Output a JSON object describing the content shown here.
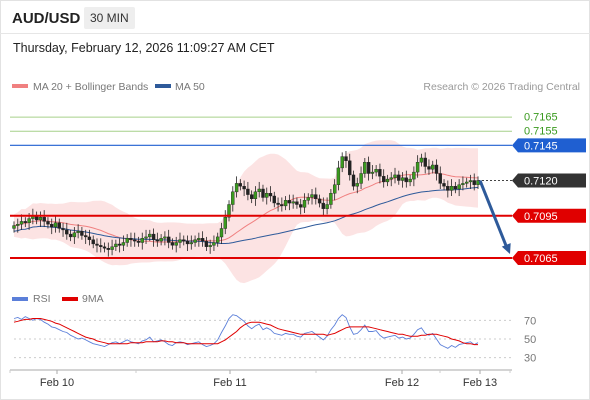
{
  "header": {
    "symbol": "AUD/USD",
    "timeframe": "30 MIN"
  },
  "datetime": "Thursday, February 12, 2026 11:09:27 AM CET",
  "legend": {
    "ma20_label": "MA 20 + Bollinger Bands",
    "ma50_label": "MA 50",
    "ma20_color": "#f08080",
    "ma50_color": "#2e5a9a",
    "credit": "Research © 2026 Trading Central"
  },
  "rsi_legend": {
    "rsi_label": "RSI",
    "ma9_label": "9MA",
    "rsi_color": "#5b7fd9",
    "ma9_color": "#e00000"
  },
  "chart_data": [
    {
      "type": "candlestick",
      "title": "",
      "y_range": [
        0.7048,
        0.718
      ],
      "x_ticks": [
        "Feb 10",
        "Feb 11",
        "Feb 12",
        "Feb 13"
      ],
      "current_price": 0.712,
      "levels": [
        {
          "value": 0.7165,
          "kind": "target",
          "color": "#3a9a1e",
          "label": "0.7165"
        },
        {
          "value": 0.7155,
          "kind": "target",
          "color": "#3a9a1e",
          "label": "0.7155"
        },
        {
          "value": 0.7145,
          "kind": "pivot",
          "color": "#1f5fd1",
          "label": "0.7145"
        },
        {
          "value": 0.712,
          "kind": "last",
          "color": "#333333",
          "label": "0.7120"
        },
        {
          "value": 0.7095,
          "kind": "support",
          "color": "#e00000",
          "label": "0.7095"
        },
        {
          "value": 0.7065,
          "kind": "support",
          "color": "#e00000",
          "label": "0.7065"
        }
      ],
      "arrow": {
        "from": 0.712,
        "to": 0.7065,
        "direction": "down",
        "color": "#2e5a9a"
      },
      "series": [
        {
          "name": "MA 20 + Bollinger Bands",
          "kind": "ma20"
        },
        {
          "name": "MA 50",
          "kind": "ma50"
        }
      ],
      "close": [
        0.7088,
        0.7089,
        0.7091,
        0.709,
        0.7093,
        0.7095,
        0.7092,
        0.7094,
        0.7091,
        0.7089,
        0.7087,
        0.709,
        0.7086,
        0.7085,
        0.7082,
        0.708,
        0.7083,
        0.7084,
        0.7081,
        0.708,
        0.7078,
        0.7075,
        0.7074,
        0.7073,
        0.7072,
        0.7071,
        0.7073,
        0.7075,
        0.7074,
        0.7076,
        0.7079,
        0.7078,
        0.7077,
        0.7076,
        0.7079,
        0.708,
        0.7082,
        0.7078,
        0.7077,
        0.7079,
        0.708,
        0.7076,
        0.7074,
        0.7076,
        0.7078,
        0.7077,
        0.7075,
        0.7076,
        0.7078,
        0.7079,
        0.7077,
        0.7073,
        0.7074,
        0.7076,
        0.708,
        0.7086,
        0.7094,
        0.7103,
        0.7112,
        0.7118,
        0.7116,
        0.7114,
        0.711,
        0.7107,
        0.7112,
        0.7114,
        0.7108,
        0.7111,
        0.7109,
        0.7104,
        0.7103,
        0.7102,
        0.7106,
        0.7104,
        0.7105,
        0.7103,
        0.7101,
        0.7106,
        0.7108,
        0.711,
        0.7107,
        0.7104,
        0.71,
        0.7103,
        0.7111,
        0.7117,
        0.7129,
        0.7137,
        0.7134,
        0.7124,
        0.7116,
        0.7118,
        0.7125,
        0.7133,
        0.7125,
        0.7126,
        0.7128,
        0.7123,
        0.7119,
        0.7121,
        0.7122,
        0.7124,
        0.712,
        0.7122,
        0.7119,
        0.7121,
        0.7126,
        0.7133,
        0.7136,
        0.713,
        0.7128,
        0.7131,
        0.7125,
        0.7118,
        0.7116,
        0.7113,
        0.7116,
        0.7114,
        0.7117,
        0.7118,
        0.7119,
        0.712,
        0.7117,
        0.712
      ],
      "rsi": {
        "y_ticks": [
          70,
          50,
          30
        ],
        "y_range": [
          20,
          80
        ],
        "rsi": [
          72,
          73,
          71,
          74,
          72,
          70,
          72,
          71,
          68,
          66,
          63,
          62,
          60,
          58,
          57,
          54,
          52,
          50,
          51,
          49,
          47,
          45,
          44,
          43,
          42,
          44,
          46,
          47,
          45,
          47,
          49,
          47,
          46,
          45,
          48,
          49,
          52,
          47,
          48,
          49,
          47,
          44,
          43,
          46,
          47,
          46,
          44,
          45,
          46,
          47,
          44,
          42,
          43,
          45,
          49,
          57,
          64,
          72,
          76,
          75,
          72,
          69,
          64,
          61,
          64,
          66,
          60,
          62,
          60,
          56,
          55,
          54,
          56,
          55,
          55,
          53,
          52,
          56,
          57,
          58,
          55,
          52,
          49,
          53,
          60,
          65,
          72,
          76,
          73,
          63,
          55,
          56,
          60,
          65,
          58,
          58,
          59,
          54,
          51,
          52,
          53,
          54,
          51,
          52,
          50,
          51,
          55,
          60,
          62,
          56,
          54,
          56,
          50,
          44,
          42,
          40,
          43,
          41,
          44,
          45,
          46,
          47,
          44,
          46
        ],
        "ma9": [
          68,
          69,
          70,
          71,
          71,
          72,
          72,
          72,
          71,
          70,
          69,
          67,
          66,
          64,
          62,
          60,
          58,
          56,
          54,
          52,
          51,
          50,
          48,
          47,
          46,
          45,
          45,
          45,
          45,
          45,
          45,
          46,
          46,
          46,
          46,
          47,
          47,
          47,
          47,
          48,
          48,
          47,
          47,
          46,
          46,
          46,
          45,
          45,
          45,
          45,
          45,
          45,
          45,
          45,
          45,
          47,
          49,
          52,
          55,
          58,
          62,
          65,
          67,
          68,
          68,
          68,
          67,
          66,
          65,
          63,
          61,
          60,
          59,
          58,
          57,
          56,
          55,
          55,
          55,
          55,
          55,
          55,
          55,
          54,
          55,
          56,
          58,
          60,
          62,
          63,
          63,
          63,
          63,
          63,
          63,
          62,
          61,
          60,
          59,
          58,
          57,
          56,
          55,
          55,
          54,
          53,
          53,
          53,
          54,
          54,
          55,
          55,
          55,
          54,
          53,
          52,
          50,
          49,
          48,
          46,
          45,
          45,
          44,
          44
        ]
      }
    }
  ]
}
